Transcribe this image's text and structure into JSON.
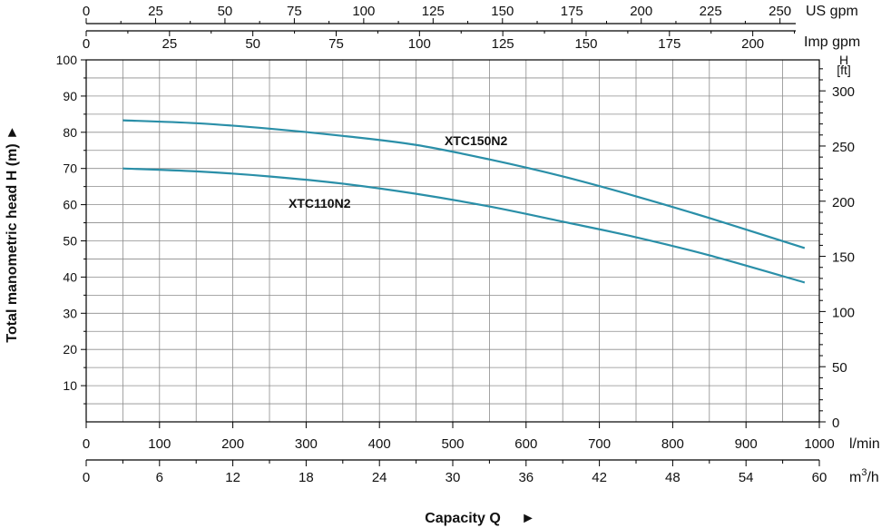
{
  "chart_data": {
    "type": "line",
    "title": "",
    "xlabel": "Capacity Q",
    "ylabel": "Total manometric head H (m)",
    "x_unit": "l/min",
    "y_unit": "m",
    "xlim": [
      0,
      1000
    ],
    "ylim": [
      0,
      100
    ],
    "grid": true,
    "x_ticks": [
      0,
      100,
      200,
      300,
      400,
      500,
      600,
      700,
      800,
      900,
      1000
    ],
    "y_ticks": [
      10,
      20,
      30,
      40,
      50,
      60,
      70,
      80,
      90,
      100
    ],
    "secondary_axes": {
      "us_gpm": {
        "unit": "US gpm",
        "ticks": [
          0,
          25,
          50,
          75,
          100,
          125,
          150,
          175,
          200,
          225,
          250
        ]
      },
      "imp_gpm": {
        "unit": "Imp gpm",
        "ticks": [
          0,
          25,
          50,
          75,
          100,
          125,
          150,
          175,
          200
        ]
      },
      "m3h": {
        "unit": "m³/h",
        "unit_base": "m",
        "unit_sup": "3",
        "unit_tail": "/h",
        "ticks": [
          0,
          6,
          12,
          18,
          24,
          30,
          36,
          42,
          48,
          54,
          60
        ]
      },
      "ft": {
        "unit_top": "H",
        "unit_bottom": "[ft]",
        "ticks": [
          0,
          50,
          100,
          150,
          200,
          250,
          300
        ]
      }
    },
    "series": [
      {
        "name": "XTC150N2",
        "color": "#2a8fa8",
        "x": [
          50,
          150,
          250,
          350,
          450,
          550,
          650,
          750,
          850,
          980
        ],
        "y": [
          83.3,
          82.5,
          81.0,
          79.0,
          76.5,
          72.5,
          67.8,
          62.3,
          56.3,
          48.0
        ]
      },
      {
        "name": "XTC110N2",
        "color": "#2a8fa8",
        "x": [
          50,
          150,
          250,
          350,
          450,
          550,
          650,
          750,
          850,
          980
        ],
        "y": [
          70.0,
          69.2,
          67.8,
          65.8,
          63.0,
          59.5,
          55.3,
          51.0,
          46.0,
          38.5
        ]
      }
    ]
  }
}
